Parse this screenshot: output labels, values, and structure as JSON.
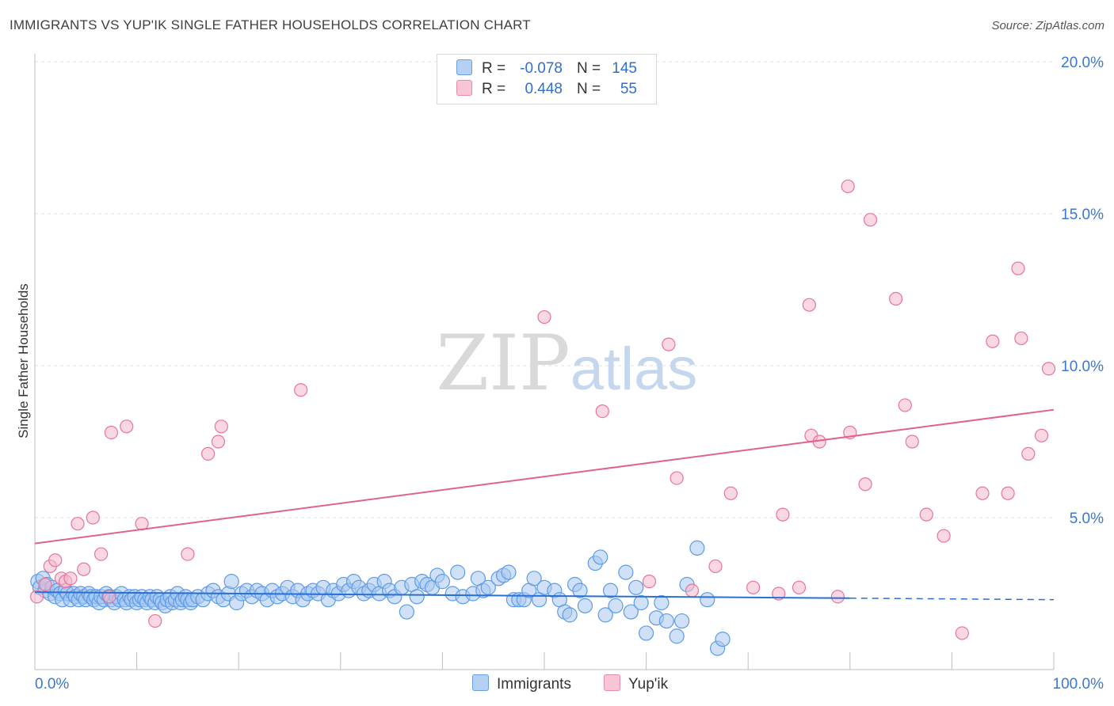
{
  "title": "IMMIGRANTS VS YUP'IK SINGLE FATHER HOUSEHOLDS CORRELATION CHART",
  "source": "Source: ZipAtlas.com",
  "watermark": {
    "zip": "ZIP",
    "atlas": "atlas"
  },
  "legend": {
    "rows": [
      {
        "r_label": "R =",
        "r_value": "-0.078",
        "n_label": "N =",
        "n_value": "145"
      },
      {
        "r_label": "R =",
        "r_value": "0.448",
        "n_label": "N =",
        "n_value": "55"
      }
    ]
  },
  "bottom_legend": {
    "immigrants": "Immigrants",
    "yupik": "Yup'ik"
  },
  "chart_data": {
    "type": "scatter",
    "title": "IMMIGRANTS VS YUP'IK SINGLE FATHER HOUSEHOLDS CORRELATION CHART",
    "xlabel": "",
    "ylabel": "Single Father Households",
    "xlim": [
      0,
      100
    ],
    "ylim": [
      0,
      20
    ],
    "x_tick_labels": [
      "0.0%",
      "100.0%"
    ],
    "y_ticks": [
      5,
      10,
      15,
      20
    ],
    "y_tick_labels": [
      "5.0%",
      "10.0%",
      "15.0%",
      "20.0%"
    ],
    "colors": {
      "immigrants": "#5b9be8",
      "immigrants_fill": "#a9c9f0",
      "yupik": "#e8739b",
      "yupik_fill": "#f5b8cc",
      "trend_blue": "#2a6fd4",
      "trend_pink": "#e0628f",
      "axis_text": "#3a78d0"
    },
    "series": [
      {
        "name": "Immigrants",
        "r": -0.078,
        "n": 145,
        "trend": {
          "x0": 0,
          "y0": 2.55,
          "x1": 80,
          "y1": 2.35,
          "dash_to_x": 100,
          "dash_to_y": 2.3
        },
        "points": [
          [
            0.3,
            2.9
          ],
          [
            0.5,
            2.7
          ],
          [
            0.8,
            3.0
          ],
          [
            1.0,
            2.6
          ],
          [
            1.2,
            2.8
          ],
          [
            1.5,
            2.5
          ],
          [
            1.7,
            2.7
          ],
          [
            2.0,
            2.4
          ],
          [
            2.2,
            2.6
          ],
          [
            2.5,
            2.5
          ],
          [
            2.7,
            2.3
          ],
          [
            3.0,
            2.6
          ],
          [
            3.2,
            2.5
          ],
          [
            3.5,
            2.3
          ],
          [
            3.8,
            2.5
          ],
          [
            4.0,
            2.4
          ],
          [
            4.3,
            2.3
          ],
          [
            4.5,
            2.5
          ],
          [
            4.8,
            2.4
          ],
          [
            5.0,
            2.3
          ],
          [
            5.3,
            2.5
          ],
          [
            5.5,
            2.4
          ],
          [
            5.8,
            2.3
          ],
          [
            6.0,
            2.4
          ],
          [
            6.3,
            2.2
          ],
          [
            6.5,
            2.4
          ],
          [
            6.8,
            2.3
          ],
          [
            7.0,
            2.5
          ],
          [
            7.3,
            2.4
          ],
          [
            7.5,
            2.3
          ],
          [
            7.8,
            2.2
          ],
          [
            8.0,
            2.4
          ],
          [
            8.3,
            2.3
          ],
          [
            8.5,
            2.5
          ],
          [
            8.8,
            2.3
          ],
          [
            9.0,
            2.2
          ],
          [
            9.3,
            2.4
          ],
          [
            9.5,
            2.3
          ],
          [
            9.8,
            2.4
          ],
          [
            10.0,
            2.2
          ],
          [
            10.3,
            2.3
          ],
          [
            10.5,
            2.4
          ],
          [
            10.8,
            2.3
          ],
          [
            11.0,
            2.2
          ],
          [
            11.3,
            2.4
          ],
          [
            11.5,
            2.3
          ],
          [
            11.8,
            2.2
          ],
          [
            12.0,
            2.4
          ],
          [
            12.3,
            2.3
          ],
          [
            12.5,
            2.2
          ],
          [
            12.8,
            2.1
          ],
          [
            13.0,
            2.3
          ],
          [
            13.3,
            2.4
          ],
          [
            13.5,
            2.2
          ],
          [
            13.8,
            2.3
          ],
          [
            14.0,
            2.5
          ],
          [
            14.3,
            2.2
          ],
          [
            14.5,
            2.3
          ],
          [
            14.8,
            2.4
          ],
          [
            15.0,
            2.3
          ],
          [
            15.3,
            2.2
          ],
          [
            15.5,
            2.3
          ],
          [
            16.0,
            2.4
          ],
          [
            16.5,
            2.3
          ],
          [
            17.0,
            2.5
          ],
          [
            17.5,
            2.6
          ],
          [
            18.0,
            2.4
          ],
          [
            18.5,
            2.3
          ],
          [
            19.0,
            2.5
          ],
          [
            19.3,
            2.9
          ],
          [
            19.8,
            2.2
          ],
          [
            20.3,
            2.5
          ],
          [
            20.8,
            2.6
          ],
          [
            21.3,
            2.4
          ],
          [
            21.8,
            2.6
          ],
          [
            22.3,
            2.5
          ],
          [
            22.8,
            2.3
          ],
          [
            23.3,
            2.6
          ],
          [
            23.8,
            2.4
          ],
          [
            24.3,
            2.5
          ],
          [
            24.8,
            2.7
          ],
          [
            25.3,
            2.4
          ],
          [
            25.8,
            2.6
          ],
          [
            26.3,
            2.3
          ],
          [
            26.8,
            2.5
          ],
          [
            27.3,
            2.6
          ],
          [
            27.8,
            2.5
          ],
          [
            28.3,
            2.7
          ],
          [
            28.8,
            2.3
          ],
          [
            29.3,
            2.6
          ],
          [
            29.8,
            2.5
          ],
          [
            30.3,
            2.8
          ],
          [
            30.8,
            2.6
          ],
          [
            31.3,
            2.9
          ],
          [
            31.8,
            2.7
          ],
          [
            32.3,
            2.5
          ],
          [
            32.8,
            2.6
          ],
          [
            33.3,
            2.8
          ],
          [
            33.8,
            2.5
          ],
          [
            34.3,
            2.9
          ],
          [
            34.8,
            2.6
          ],
          [
            35.3,
            2.4
          ],
          [
            36.0,
            2.7
          ],
          [
            36.5,
            1.9
          ],
          [
            37.0,
            2.8
          ],
          [
            37.5,
            2.4
          ],
          [
            38.0,
            2.9
          ],
          [
            38.5,
            2.8
          ],
          [
            39.0,
            2.7
          ],
          [
            39.5,
            3.1
          ],
          [
            40.0,
            2.9
          ],
          [
            41.0,
            2.5
          ],
          [
            41.5,
            3.2
          ],
          [
            42.0,
            2.4
          ],
          [
            43.0,
            2.5
          ],
          [
            43.5,
            3.0
          ],
          [
            44.0,
            2.6
          ],
          [
            44.5,
            2.7
          ],
          [
            45.5,
            3.0
          ],
          [
            46.0,
            3.1
          ],
          [
            46.5,
            3.2
          ],
          [
            47.0,
            2.3
          ],
          [
            47.5,
            2.3
          ],
          [
            48.0,
            2.3
          ],
          [
            48.5,
            2.6
          ],
          [
            49.0,
            3.0
          ],
          [
            49.5,
            2.3
          ],
          [
            50.0,
            2.7
          ],
          [
            51.0,
            2.6
          ],
          [
            51.5,
            2.3
          ],
          [
            52.0,
            1.9
          ],
          [
            52.5,
            1.8
          ],
          [
            53.0,
            2.8
          ],
          [
            53.5,
            2.6
          ],
          [
            54.0,
            2.1
          ],
          [
            55.0,
            3.5
          ],
          [
            55.5,
            3.7
          ],
          [
            56.0,
            1.8
          ],
          [
            56.5,
            2.6
          ],
          [
            57.0,
            2.1
          ],
          [
            58.0,
            3.2
          ],
          [
            58.5,
            1.9
          ],
          [
            59.0,
            2.7
          ],
          [
            59.5,
            2.2
          ],
          [
            60.0,
            1.2
          ],
          [
            61.0,
            1.7
          ],
          [
            61.5,
            2.2
          ],
          [
            62.0,
            1.6
          ],
          [
            63.0,
            1.1
          ],
          [
            63.5,
            1.6
          ],
          [
            64.0,
            2.8
          ],
          [
            65.0,
            4.0
          ],
          [
            66.0,
            2.3
          ],
          [
            67.0,
            0.7
          ],
          [
            67.5,
            1.0
          ]
        ]
      },
      {
        "name": "Yup'ik",
        "r": 0.448,
        "n": 55,
        "trend": {
          "x0": 0,
          "y0": 4.15,
          "x1": 100,
          "y1": 8.55
        },
        "points": [
          [
            0.2,
            2.4
          ],
          [
            1.0,
            2.8
          ],
          [
            1.5,
            3.4
          ],
          [
            2.0,
            3.6
          ],
          [
            2.6,
            3.0
          ],
          [
            3.0,
            2.9
          ],
          [
            3.5,
            3.0
          ],
          [
            4.2,
            4.8
          ],
          [
            4.8,
            3.3
          ],
          [
            5.7,
            5.0
          ],
          [
            6.5,
            3.8
          ],
          [
            7.3,
            2.4
          ],
          [
            7.5,
            7.8
          ],
          [
            9.0,
            8.0
          ],
          [
            10.5,
            4.8
          ],
          [
            11.8,
            1.6
          ],
          [
            15.0,
            3.8
          ],
          [
            17.0,
            7.1
          ],
          [
            18.0,
            7.5
          ],
          [
            18.3,
            8.0
          ],
          [
            26.1,
            9.2
          ],
          [
            50.0,
            11.6
          ],
          [
            55.7,
            8.5
          ],
          [
            60.3,
            2.9
          ],
          [
            62.2,
            10.7
          ],
          [
            63.0,
            6.3
          ],
          [
            64.5,
            2.6
          ],
          [
            66.8,
            3.4
          ],
          [
            68.3,
            5.8
          ],
          [
            70.5,
            2.7
          ],
          [
            73.0,
            2.5
          ],
          [
            73.4,
            5.1
          ],
          [
            75.0,
            2.7
          ],
          [
            76.0,
            12.0
          ],
          [
            76.2,
            7.7
          ],
          [
            77.0,
            7.5
          ],
          [
            79.8,
            15.9
          ],
          [
            82.0,
            14.8
          ],
          [
            78.8,
            2.4
          ],
          [
            80.0,
            7.8
          ],
          [
            81.5,
            6.1
          ],
          [
            84.5,
            12.2
          ],
          [
            85.4,
            8.7
          ],
          [
            86.1,
            7.5
          ],
          [
            87.5,
            5.1
          ],
          [
            89.2,
            4.4
          ],
          [
            91.0,
            1.2
          ],
          [
            93.0,
            5.8
          ],
          [
            94.0,
            10.8
          ],
          [
            95.5,
            5.8
          ],
          [
            96.5,
            13.2
          ],
          [
            96.8,
            10.9
          ],
          [
            97.5,
            7.1
          ],
          [
            98.8,
            7.7
          ],
          [
            99.5,
            9.9
          ]
        ]
      }
    ]
  }
}
